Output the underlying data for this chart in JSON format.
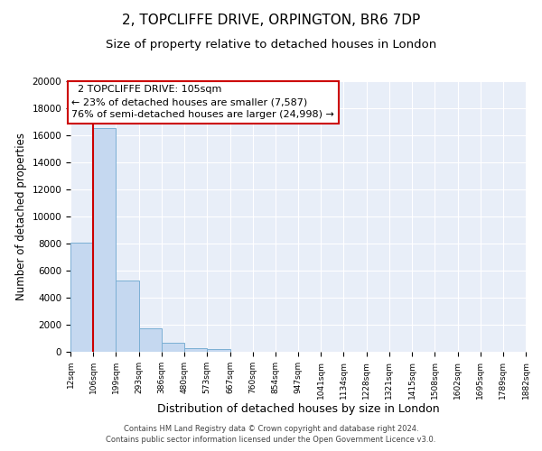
{
  "title": "2, TOPCLIFFE DRIVE, ORPINGTON, BR6 7DP",
  "subtitle": "Size of property relative to detached houses in London",
  "xlabel": "Distribution of detached houses by size in London",
  "ylabel": "Number of detached properties",
  "bar_edges": [
    12,
    106,
    199,
    293,
    386,
    480,
    573,
    667,
    760,
    854,
    947,
    1041,
    1134,
    1228,
    1321,
    1415,
    1508,
    1602,
    1695,
    1789,
    1882
  ],
  "bar_heights": [
    8100,
    16500,
    5300,
    1750,
    700,
    280,
    170,
    0,
    0,
    0,
    0,
    0,
    0,
    0,
    0,
    0,
    0,
    0,
    0,
    0
  ],
  "bar_color": "#c5d8f0",
  "bar_edge_color": "#7bafd4",
  "property_line_x": 105,
  "property_line_color": "#cc0000",
  "ylim": [
    0,
    20000
  ],
  "xlim": [
    12,
    1882
  ],
  "annotation_title": "2 TOPCLIFFE DRIVE: 105sqm",
  "annotation_line1": "← 23% of detached houses are smaller (7,587)",
  "annotation_line2": "76% of semi-detached houses are larger (24,998) →",
  "annotation_box_color": "#ffffff",
  "annotation_box_edge_color": "#cc0000",
  "tick_labels": [
    "12sqm",
    "106sqm",
    "199sqm",
    "293sqm",
    "386sqm",
    "480sqm",
    "573sqm",
    "667sqm",
    "760sqm",
    "854sqm",
    "947sqm",
    "1041sqm",
    "1134sqm",
    "1228sqm",
    "1321sqm",
    "1415sqm",
    "1508sqm",
    "1602sqm",
    "1695sqm",
    "1789sqm",
    "1882sqm"
  ],
  "footer_line1": "Contains HM Land Registry data © Crown copyright and database right 2024.",
  "footer_line2": "Contains public sector information licensed under the Open Government Licence v3.0.",
  "background_color": "#e8eef8",
  "grid_color": "#ffffff",
  "title_fontsize": 11,
  "subtitle_fontsize": 9.5,
  "tick_fontsize": 6.5,
  "ylabel_fontsize": 8.5,
  "xlabel_fontsize": 9,
  "footer_fontsize": 6,
  "annot_fontsize": 8
}
